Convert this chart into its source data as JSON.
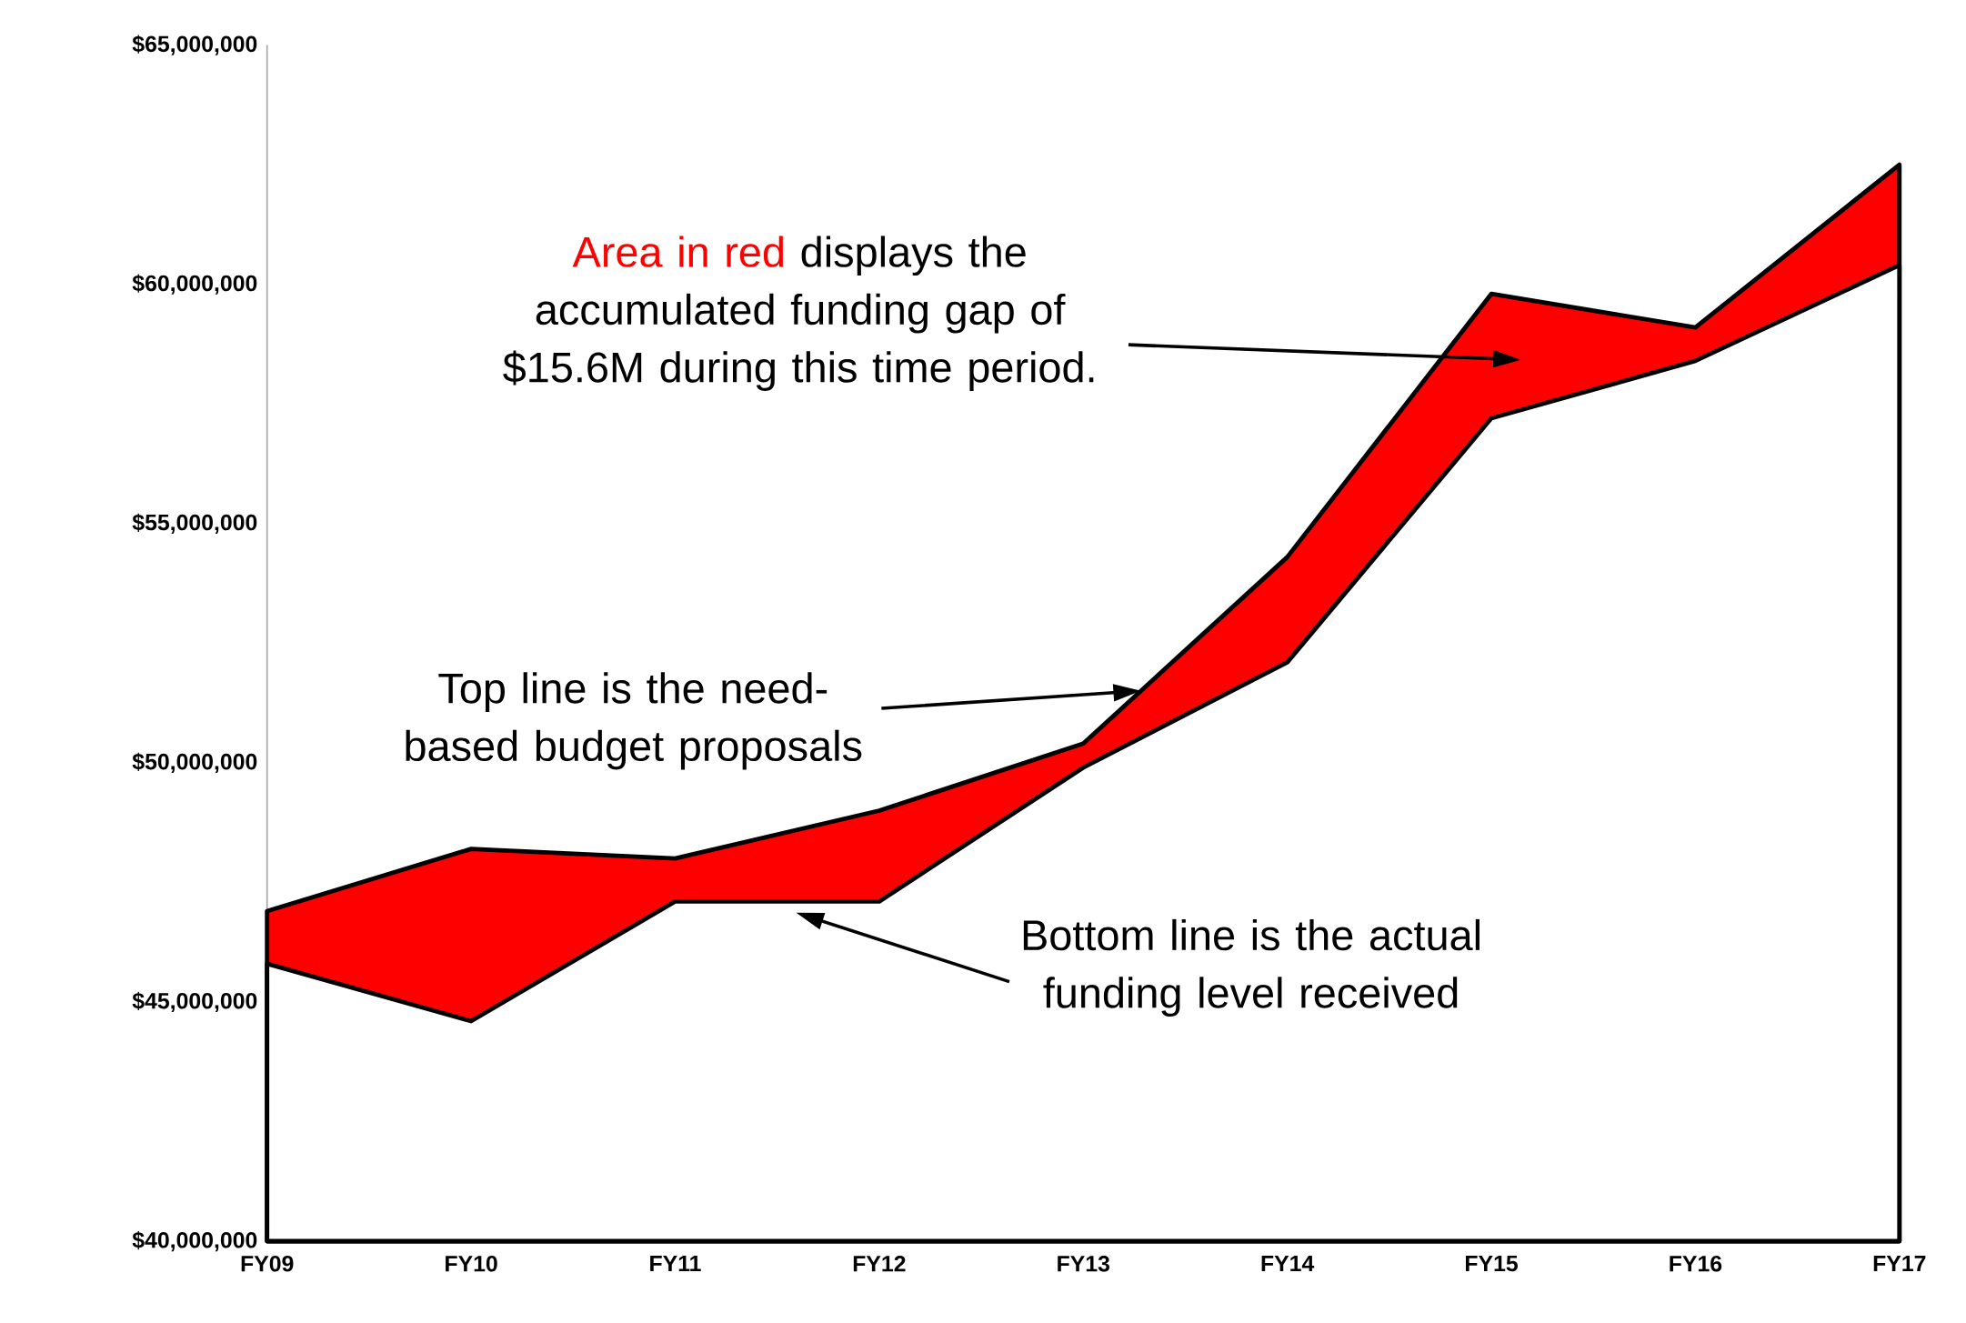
{
  "chart_data": {
    "type": "area",
    "categories": [
      "FY09",
      "FY10",
      "FY11",
      "FY12",
      "FY13",
      "FY14",
      "FY15",
      "FY16",
      "FY17"
    ],
    "series": [
      {
        "color": "#ff0000",
        "values": [
          46900000,
          48200000,
          48000000,
          49000000,
          50400000,
          54300000,
          59800000,
          59100000,
          62500000
        ]
      },
      {
        "color": "#ffffff",
        "values": [
          45800000,
          44600000,
          47100000,
          47100000,
          49900000,
          52100000,
          57200000,
          58400000,
          60400000
        ]
      }
    ],
    "ylim": [
      40000000,
      65000000
    ],
    "yticks": [
      {
        "value": 40000000,
        "label": "$40,000,000"
      },
      {
        "value": 45000000,
        "label": "$45,000,000"
      },
      {
        "value": 50000000,
        "label": "$50,000,000"
      },
      {
        "value": 55000000,
        "label": "$55,000,000"
      },
      {
        "value": 60000000,
        "label": "$60,000,000"
      },
      {
        "value": 65000000,
        "label": "$65,000,000"
      }
    ],
    "annotations": [
      "Area in red",
      "displays the accumulated funding gap of $15.6M during this time period.",
      "Top line is the need-based budget proposals",
      "Bottom line is the actual funding level received"
    ]
  }
}
